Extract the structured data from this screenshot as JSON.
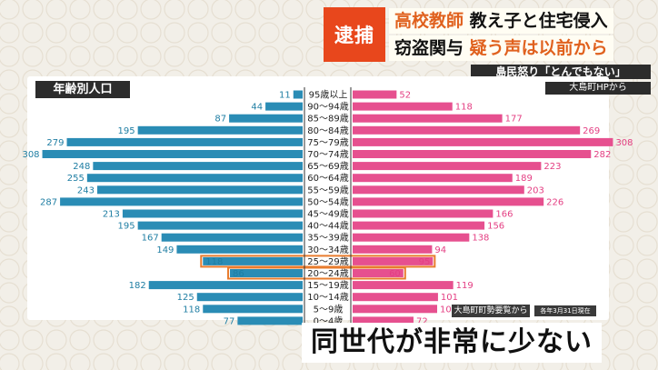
{
  "banner": {
    "badge": "逮捕",
    "line1_a": "高校教師",
    "line1_b": "教え子と住宅侵入",
    "line2_a": "窃盗関与",
    "line2_b": "疑う声は以前から"
  },
  "subtitle": "島民怒り「とんでもない」",
  "source": "大島町HPから",
  "panel_title": "年齢別人口",
  "note_source": "大島町町勢要覧から",
  "note_date": "各年3月31日現在",
  "caption": "同世代が非常に少ない",
  "colors": {
    "male": "#2a8cb5",
    "female": "#e6508f",
    "highlight": "#e87c2e"
  },
  "chart_data": {
    "type": "bar",
    "categories": [
      "95歳以上",
      "90～94歳",
      "85～89歳",
      "80～84歳",
      "75～79歳",
      "70～74歳",
      "65～69歳",
      "60～64歳",
      "55～59歳",
      "50～54歳",
      "45～49歳",
      "40～44歳",
      "35～39歳",
      "30～34歳",
      "25～29歳",
      "20～24歳",
      "15～19歳",
      "10～14歳",
      "5～9歳",
      "0～4歳"
    ],
    "series": [
      {
        "values": [
          11,
          44,
          87,
          195,
          279,
          308,
          248,
          255,
          243,
          287,
          213,
          195,
          167,
          149,
          118,
          86,
          182,
          125,
          118,
          77
        ]
      },
      {
        "values": [
          52,
          118,
          177,
          269,
          308,
          282,
          223,
          189,
          203,
          226,
          166,
          156,
          138,
          94,
          95,
          60,
          119,
          101,
          100,
          72
        ]
      }
    ],
    "highlighted_categories": [
      "25～29歳",
      "20～24歳"
    ],
    "xlim": [
      0,
      320
    ]
  }
}
